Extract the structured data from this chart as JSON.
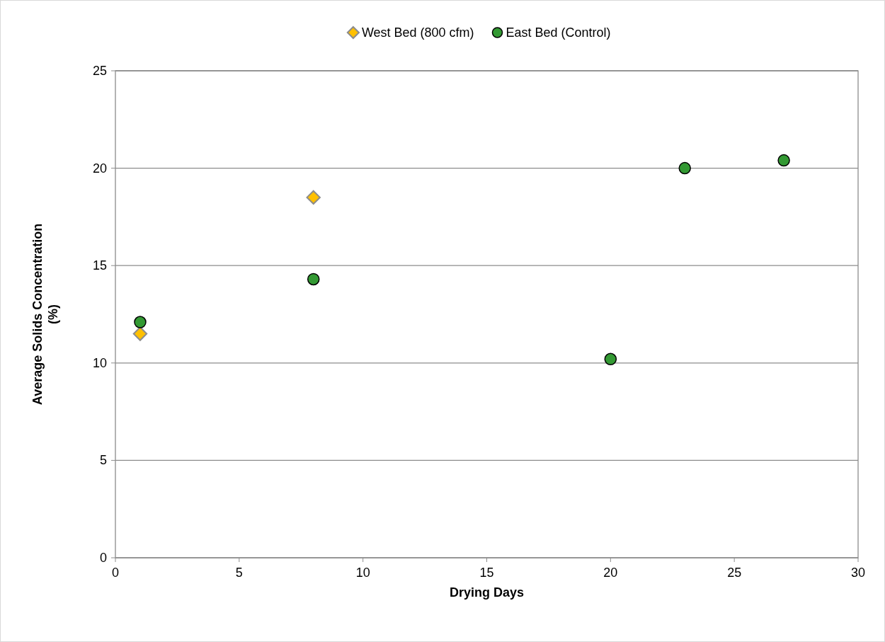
{
  "chart_data": {
    "type": "scatter",
    "xlabel": "Drying Days",
    "ylabel": "Average Solids Concentration\n(%)",
    "xlim": [
      0,
      30
    ],
    "xticks": [
      0,
      5,
      10,
      15,
      20,
      25,
      30
    ],
    "ylim": [
      0,
      25
    ],
    "yticks": [
      0,
      5,
      10,
      15,
      20,
      25
    ],
    "grid": "y",
    "legend": "top",
    "series": [
      {
        "name": "West Bed (800 cfm)",
        "color": "#ffc000",
        "marker": "diamond",
        "x": [
          1,
          8
        ],
        "values": [
          11.5,
          18.5
        ]
      },
      {
        "name": "East Bed (Control)",
        "color": "#339933",
        "marker": "circle",
        "x": [
          1,
          8,
          20,
          23,
          27
        ],
        "values": [
          12.1,
          14.3,
          10.2,
          20.0,
          20.4
        ]
      }
    ]
  }
}
